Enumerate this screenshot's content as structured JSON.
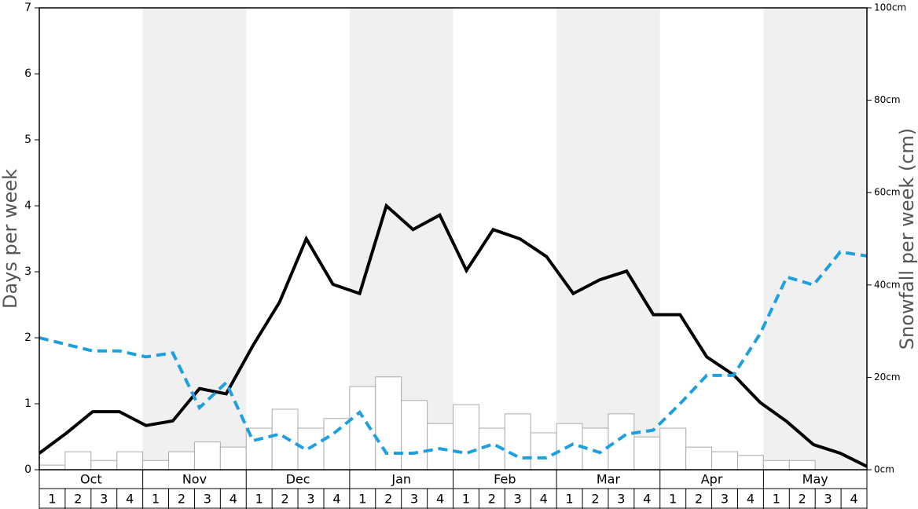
{
  "chart_data": {
    "type": "combo",
    "ylabel": "Days per week",
    "y2label": "Snowfall per week (cm)",
    "months": [
      "Oct",
      "Nov",
      "Dec",
      "Jan",
      "Feb",
      "Mar",
      "Apr",
      "May"
    ],
    "categories": [
      "1",
      "2",
      "3",
      "4",
      "1",
      "2",
      "3",
      "4",
      "1",
      "2",
      "3",
      "4",
      "1",
      "2",
      "3",
      "4",
      "1",
      "2",
      "3",
      "4",
      "1",
      "2",
      "3",
      "4",
      "1",
      "2",
      "3",
      "4",
      "1",
      "2",
      "3",
      "4"
    ],
    "series": [
      {
        "type": "bar",
        "axis": "y2",
        "color": "#ffffff",
        "values": [
          1.0,
          3.9,
          2.0,
          3.9,
          2.0,
          3.9,
          6.0,
          4.9,
          9.0,
          13.1,
          9.0,
          11.1,
          18.0,
          20.1,
          15.0,
          10.0,
          14.1,
          9.0,
          12.1,
          8.0,
          10.0,
          9.0,
          12.1,
          7.1,
          9.0,
          4.9,
          3.9,
          3.1,
          2.0,
          2.0,
          0,
          0
        ]
      },
      {
        "type": "line",
        "axis": "y",
        "color": "#000000",
        "dashed": false,
        "values": [
          0.25,
          0.55,
          0.88,
          0.88,
          0.67,
          0.74,
          1.23,
          1.15,
          1.88,
          2.54,
          3.5,
          2.81,
          2.67,
          4.0,
          3.64,
          3.86,
          3.02,
          3.64,
          3.5,
          3.23,
          2.67,
          2.88,
          3.01,
          2.35,
          2.35,
          1.71,
          1.44,
          1.02,
          0.73,
          0.38,
          0.25,
          0.05
        ]
      },
      {
        "type": "line",
        "axis": "y",
        "color": "#1ea0e0",
        "dashed": true,
        "values": [
          2.0,
          1.9,
          1.8,
          1.8,
          1.71,
          1.77,
          0.94,
          1.32,
          0.44,
          0.54,
          0.3,
          0.54,
          0.87,
          0.25,
          0.25,
          0.32,
          0.25,
          0.39,
          0.18,
          0.18,
          0.39,
          0.26,
          0.54,
          0.6,
          1.0,
          1.43,
          1.43,
          2.06,
          2.92,
          2.8,
          3.3,
          3.24
        ]
      }
    ],
    "ylim": [
      0,
      7
    ],
    "yticks": [
      0,
      1,
      2,
      3,
      4,
      5,
      6,
      7
    ],
    "y2lim": [
      0,
      100
    ],
    "y2ticks": [
      {
        "value": 0,
        "label": "0cm"
      },
      {
        "value": 20,
        "label": "20cm"
      },
      {
        "value": 40,
        "label": "40cm"
      },
      {
        "value": 60,
        "label": "60cm"
      },
      {
        "value": 80,
        "label": "80cm"
      },
      {
        "value": 100,
        "label": "100cm"
      }
    ]
  }
}
